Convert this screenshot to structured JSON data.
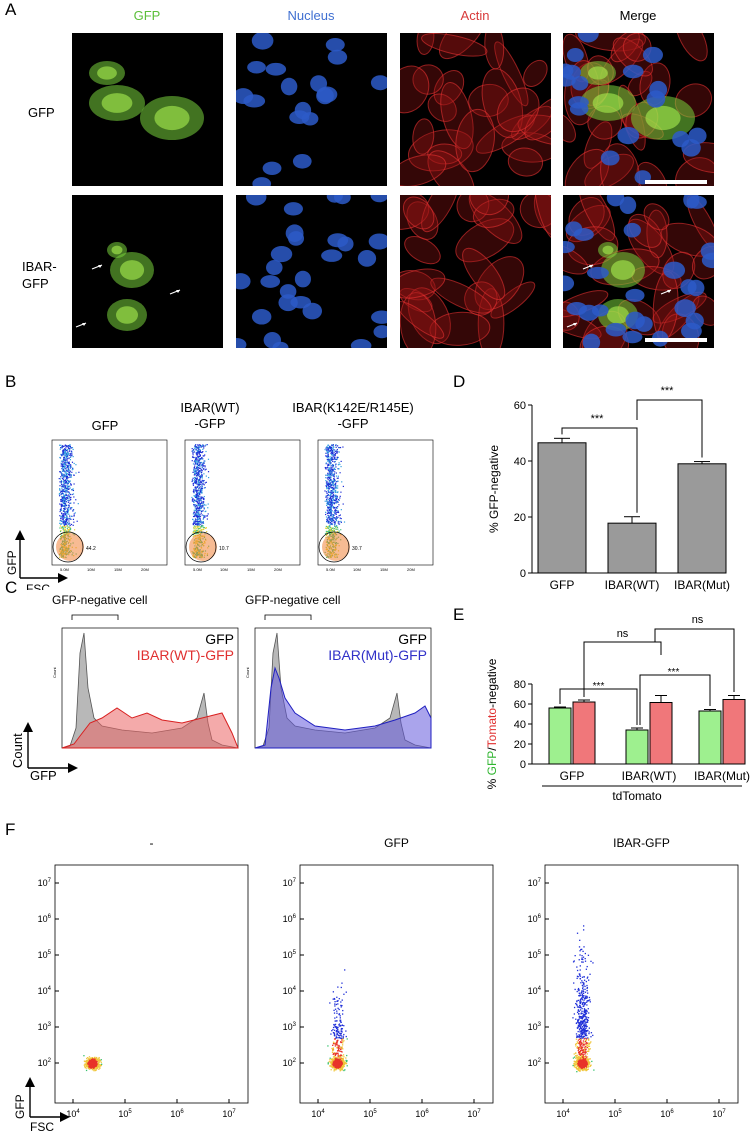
{
  "panel_A": {
    "label": "A",
    "columns": [
      "GFP",
      "Nucleus",
      "Actin",
      "Merge"
    ],
    "column_colors": [
      "#5cbf3a",
      "#3f6fd1",
      "#d83a3a",
      "#000000"
    ],
    "rows": [
      "GFP",
      "IBAR-\nGFP"
    ]
  },
  "panel_B": {
    "label": "B",
    "titles": [
      "GFP",
      "IBAR(WT)\n-GFP",
      "IBAR(K142E/R145E)\n-GFP"
    ],
    "gate_values": [
      "44.2",
      "10.7",
      "30.7"
    ],
    "xlabel": "FSC",
    "ylabel": "GFP"
  },
  "panel_C": {
    "label": "C",
    "gate_label": "GFP-negative cell",
    "left_legend": [
      "GFP",
      "IBAR(WT)-GFP"
    ],
    "right_legend": [
      "GFP",
      "IBAR(Mut)-GFP"
    ],
    "ylabel": "Count",
    "xlabel": "GFP",
    "inner_ylabel": "Count"
  },
  "panel_D": {
    "label": "D"
  },
  "panel_E": {
    "label": "E"
  },
  "panel_F": {
    "label": "F",
    "titles": [
      "-",
      "GFP",
      "IBAR-GFP"
    ],
    "xlabel": "FSC",
    "ylabel": "GFP"
  },
  "chart_data": [
    {
      "type": "bar",
      "panel": "D",
      "categories": [
        "GFP",
        "IBAR(WT)",
        "IBAR(Mut)"
      ],
      "values": [
        46.5,
        17.8,
        39.0
      ],
      "errors": [
        1.6,
        2.3,
        0.8
      ],
      "ylabel": "% GFP-negative",
      "ylim": [
        0,
        60
      ],
      "yticks": [
        0,
        20,
        40,
        60
      ],
      "significance": [
        {
          "from": 0,
          "to": 1,
          "label": "***"
        },
        {
          "from": 1,
          "to": 2,
          "label": "***"
        }
      ],
      "color": "#9a9a9a"
    },
    {
      "type": "bar",
      "panel": "E",
      "categories": [
        "GFP",
        "IBAR(WT)",
        "IBAR(Mut)"
      ],
      "series": [
        {
          "values": [
            56.0,
            34.0,
            53.0
          ],
          "errors": [
            1.0,
            2.0,
            1.5
          ],
          "color": "#9ef08f"
        },
        {
          "values": [
            62.0,
            61.5,
            64.5
          ],
          "errors": [
            2.0,
            7.0,
            4.0
          ],
          "color": "#f0777a"
        }
      ],
      "ylabel_parts": [
        "% ",
        "GFP",
        "/",
        "Tomato",
        "-negative"
      ],
      "ylabel_colors": [
        "#000000",
        "#2fb52f",
        "#000000",
        "#e03030",
        "#000000"
      ],
      "ylim": [
        0,
        80
      ],
      "yticks": [
        0,
        20,
        40,
        60,
        80
      ],
      "group_label": "tdTomato",
      "significance": [
        {
          "from": [
            0,
            0
          ],
          "to": [
            1,
            0
          ],
          "label": "***"
        },
        {
          "from": [
            1,
            0
          ],
          "to": [
            2,
            0
          ],
          "label": "***"
        },
        {
          "from": [
            0,
            1
          ],
          "to": [
            1,
            1
          ],
          "label": "ns"
        },
        {
          "from": [
            1,
            1
          ],
          "to": [
            2,
            1
          ],
          "label": "ns"
        }
      ]
    },
    {
      "type": "scatter",
      "panel": "F",
      "xscale": "log",
      "yscale": "log",
      "xticks": [
        "10^4",
        "10^5",
        "10^6",
        "10^7"
      ],
      "yticks": [
        "10^2",
        "10^3",
        "10^4",
        "10^5",
        "10^6",
        "10^7"
      ]
    }
  ]
}
